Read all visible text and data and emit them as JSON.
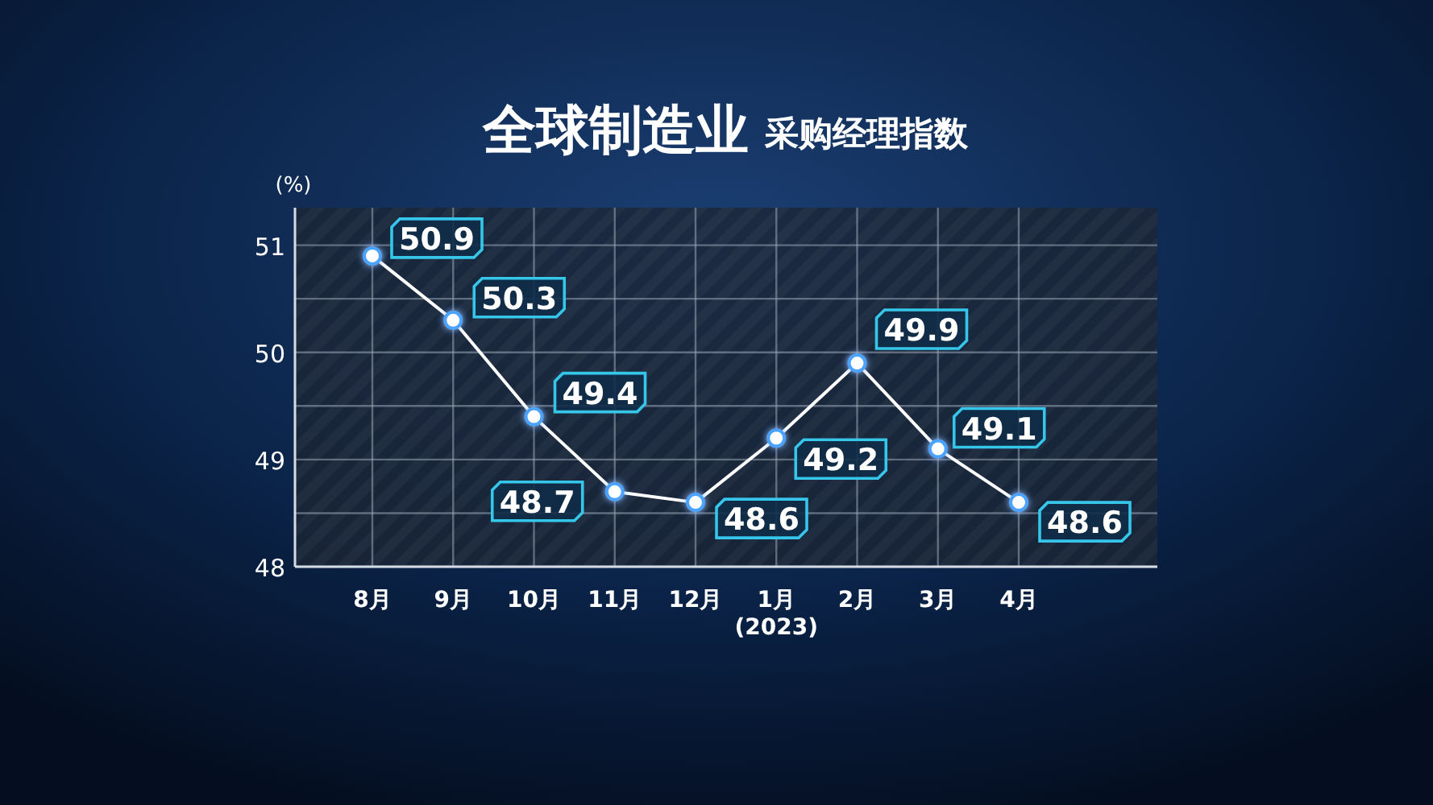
{
  "chart_data": {
    "type": "line",
    "title": "全球制造业",
    "subtitle": "采购经理指数",
    "ylabel": "(%)",
    "categories": [
      "8月",
      "9月",
      "10月",
      "11月",
      "12月",
      "1月\n(2023)",
      "2月",
      "3月",
      "4月"
    ],
    "values": [
      50.9,
      50.3,
      49.4,
      48.7,
      48.6,
      49.2,
      49.9,
      49.1,
      48.6
    ],
    "color": "#ffffff",
    "ylim": [
      48,
      51.35
    ],
    "yticks": [
      48,
      {
        "value": 48.5,
        "label": null
      },
      49,
      {
        "value": 49.5,
        "label": null
      },
      50,
      {
        "value": 50.5,
        "label": null
      },
      51
    ],
    "grid": true,
    "marker": "circle",
    "line_style": "solid",
    "data_labels": true
  }
}
